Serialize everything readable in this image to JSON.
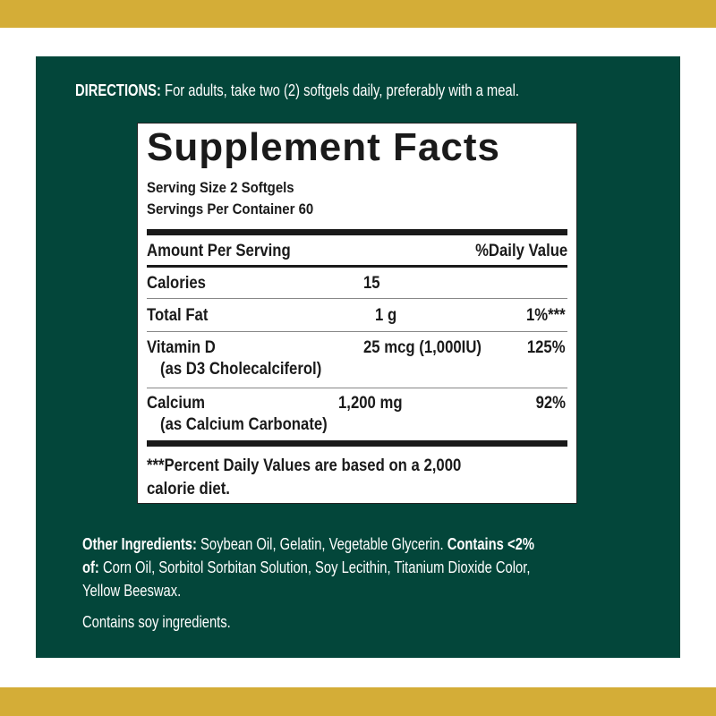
{
  "colors": {
    "gold": "#d4ad37",
    "green": "#03463a",
    "label_bg": "#ffffff",
    "text_dark": "#1a1a1a"
  },
  "directions": {
    "label": "DIRECTIONS:",
    "text": "For adults, take two (2) softgels daily, preferably with a meal."
  },
  "facts": {
    "title": "Supplement Facts",
    "serving_size": "Serving Size 2 Softgels",
    "servings_per_container": "Servings Per Container 60",
    "header_amount": "Amount Per Serving",
    "header_dv": "%Daily Value",
    "rows": [
      {
        "name": "Calories",
        "sub": "",
        "amount": "15",
        "dv": ""
      },
      {
        "name": "Total Fat",
        "sub": "",
        "amount": "1 g",
        "dv": "1%***"
      },
      {
        "name": "Vitamin D",
        "sub": "(as D3 Cholecalciferol)",
        "amount": "25 mcg (1,000IU)",
        "dv": "125%"
      },
      {
        "name": "Calcium",
        "sub": "(as Calcium Carbonate)",
        "amount": "1,200 mg",
        "dv": "92%"
      }
    ],
    "footnote_line1": "***Percent Daily Values are based on a 2,000",
    "footnote_line2": "calorie diet."
  },
  "ingredients": {
    "label": "Other Ingredients:",
    "text1": "Soybean Oil, Gelatin, Vegetable Glycerin.",
    "contains_label": "Contains <2%",
    "contains_label2": "of:",
    "text2": "Corn Oil, Sorbitol Sorbitan Solution, Soy Lecithin, Titanium Dioxide Color,",
    "text3": "Yellow Beeswax.",
    "allergen": "Contains soy ingredients."
  }
}
